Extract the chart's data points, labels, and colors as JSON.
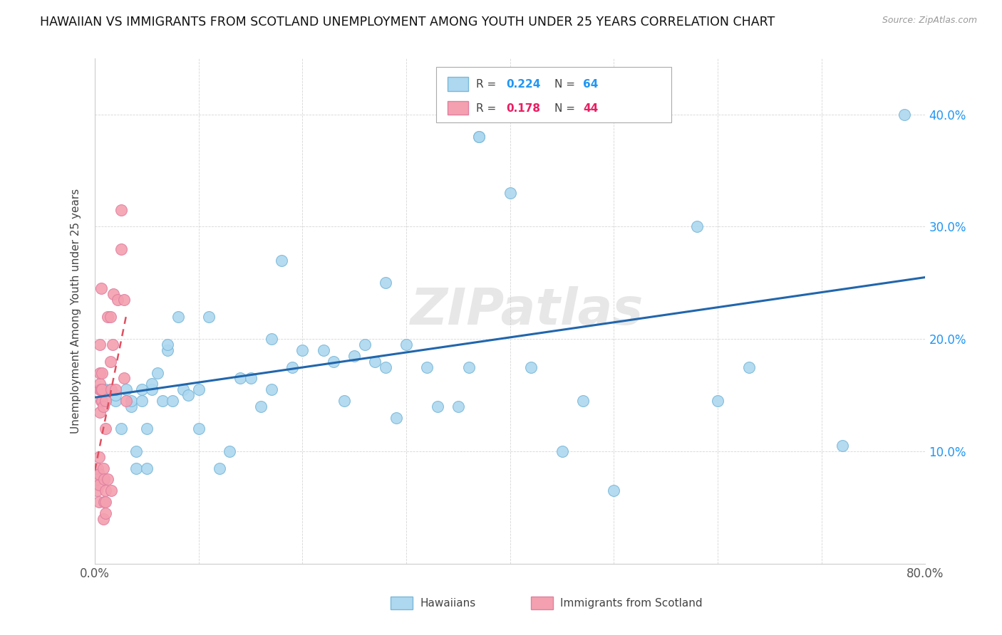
{
  "title": "HAWAIIAN VS IMMIGRANTS FROM SCOTLAND UNEMPLOYMENT AMONG YOUTH UNDER 25 YEARS CORRELATION CHART",
  "source": "Source: ZipAtlas.com",
  "ylabel": "Unemployment Among Youth under 25 years",
  "xlim": [
    0,
    0.8
  ],
  "ylim": [
    0,
    0.45
  ],
  "blue_color": "#ADD8F0",
  "pink_color": "#F4A0B0",
  "blue_line_color": "#2166AC",
  "pink_line_color": "#E05060",
  "watermark": "ZIPatlas",
  "hawaiians_x": [
    0.01,
    0.015,
    0.02,
    0.02,
    0.025,
    0.03,
    0.035,
    0.035,
    0.04,
    0.04,
    0.045,
    0.045,
    0.05,
    0.05,
    0.055,
    0.055,
    0.06,
    0.065,
    0.07,
    0.07,
    0.075,
    0.08,
    0.085,
    0.09,
    0.1,
    0.1,
    0.11,
    0.12,
    0.13,
    0.14,
    0.15,
    0.16,
    0.17,
    0.17,
    0.18,
    0.19,
    0.2,
    0.22,
    0.23,
    0.24,
    0.25,
    0.26,
    0.27,
    0.28,
    0.28,
    0.29,
    0.3,
    0.32,
    0.33,
    0.35,
    0.36,
    0.37,
    0.37,
    0.4,
    0.42,
    0.45,
    0.47,
    0.5,
    0.58,
    0.6,
    0.63,
    0.72,
    0.78
  ],
  "hawaiians_y": [
    0.155,
    0.155,
    0.145,
    0.15,
    0.12,
    0.155,
    0.14,
    0.145,
    0.085,
    0.1,
    0.145,
    0.155,
    0.085,
    0.12,
    0.155,
    0.16,
    0.17,
    0.145,
    0.19,
    0.195,
    0.145,
    0.22,
    0.155,
    0.15,
    0.12,
    0.155,
    0.22,
    0.085,
    0.1,
    0.165,
    0.165,
    0.14,
    0.155,
    0.2,
    0.27,
    0.175,
    0.19,
    0.19,
    0.18,
    0.145,
    0.185,
    0.195,
    0.18,
    0.175,
    0.25,
    0.13,
    0.195,
    0.175,
    0.14,
    0.14,
    0.175,
    0.38,
    0.38,
    0.33,
    0.175,
    0.1,
    0.145,
    0.065,
    0.3,
    0.145,
    0.175,
    0.105,
    0.4
  ],
  "scotland_x": [
    0.002,
    0.003,
    0.003,
    0.004,
    0.004,
    0.004,
    0.004,
    0.005,
    0.005,
    0.005,
    0.005,
    0.005,
    0.005,
    0.006,
    0.006,
    0.006,
    0.007,
    0.007,
    0.007,
    0.008,
    0.008,
    0.008,
    0.009,
    0.009,
    0.01,
    0.01,
    0.01,
    0.01,
    0.01,
    0.012,
    0.012,
    0.015,
    0.015,
    0.016,
    0.016,
    0.017,
    0.018,
    0.02,
    0.022,
    0.025,
    0.025,
    0.028,
    0.028,
    0.03
  ],
  "scotland_y": [
    0.065,
    0.075,
    0.085,
    0.055,
    0.07,
    0.08,
    0.095,
    0.135,
    0.155,
    0.155,
    0.16,
    0.17,
    0.195,
    0.145,
    0.155,
    0.245,
    0.145,
    0.155,
    0.17,
    0.04,
    0.085,
    0.14,
    0.055,
    0.075,
    0.045,
    0.055,
    0.065,
    0.12,
    0.145,
    0.075,
    0.22,
    0.18,
    0.22,
    0.065,
    0.155,
    0.195,
    0.24,
    0.155,
    0.235,
    0.28,
    0.315,
    0.165,
    0.235,
    0.145
  ],
  "blue_trendline_x": [
    0.0,
    0.8
  ],
  "blue_trendline_y": [
    0.148,
    0.255
  ],
  "pink_trendline_x": [
    0.0,
    0.03
  ],
  "pink_trendline_y": [
    0.083,
    0.22
  ]
}
